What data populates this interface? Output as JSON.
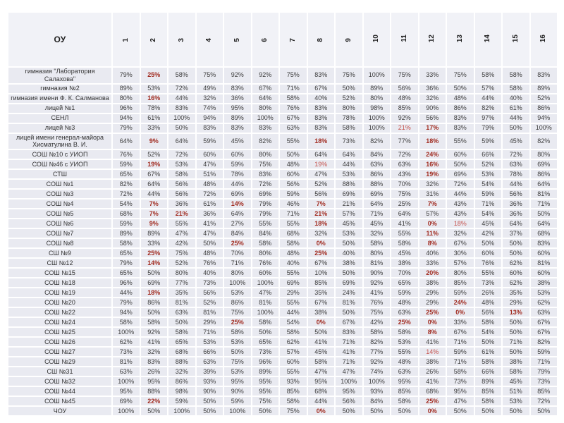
{
  "colors": {
    "row_bg": "#e9eaf1",
    "header_bg": "#f1f2f7",
    "text": "#3d3d3d",
    "name_text": "#333333",
    "header_text": "#1f1f1f",
    "red_bold": "#a12c21",
    "red_light": "#c5534e"
  },
  "chart_data": {
    "type": "table",
    "corner_header": "ОУ",
    "column_headers": [
      "1",
      "2",
      "3",
      "4",
      "5",
      "6",
      "7",
      "8",
      "9",
      "10",
      "11",
      "12",
      "13",
      "14",
      "15",
      "16"
    ],
    "rows": [
      {
        "name": "гимназия \"Лаборатория Салахова\"",
        "values": [
          "79%",
          "25%",
          "58%",
          "75%",
          "92%",
          "92%",
          "75%",
          "83%",
          "75%",
          "100%",
          "75%",
          "33%",
          "75%",
          "58%",
          "58%",
          "83%"
        ],
        "red_bold": [
          1
        ],
        "red_light": []
      },
      {
        "name": "гимназия №2",
        "values": [
          "89%",
          "53%",
          "72%",
          "49%",
          "83%",
          "67%",
          "71%",
          "67%",
          "50%",
          "89%",
          "56%",
          "36%",
          "50%",
          "57%",
          "58%",
          "89%"
        ],
        "red_bold": [],
        "red_light": []
      },
      {
        "name": "гимназия имени Ф. К. Салманова",
        "values": [
          "80%",
          "16%",
          "44%",
          "32%",
          "36%",
          "64%",
          "58%",
          "40%",
          "52%",
          "80%",
          "48%",
          "32%",
          "48%",
          "44%",
          "40%",
          "52%"
        ],
        "red_bold": [
          1
        ],
        "red_light": []
      },
      {
        "name": "лицей №1",
        "values": [
          "96%",
          "78%",
          "83%",
          "74%",
          "95%",
          "80%",
          "76%",
          "83%",
          "80%",
          "98%",
          "85%",
          "90%",
          "86%",
          "82%",
          "61%",
          "86%"
        ],
        "red_bold": [],
        "red_light": []
      },
      {
        "name": "СЕНЛ",
        "values": [
          "94%",
          "61%",
          "100%",
          "94%",
          "89%",
          "100%",
          "67%",
          "83%",
          "78%",
          "100%",
          "92%",
          "56%",
          "83%",
          "97%",
          "44%",
          "94%"
        ],
        "red_bold": [],
        "red_light": []
      },
      {
        "name": "лицей №3",
        "values": [
          "79%",
          "33%",
          "50%",
          "83%",
          "83%",
          "83%",
          "63%",
          "83%",
          "58%",
          "100%",
          "21%",
          "17%",
          "83%",
          "79%",
          "50%",
          "100%"
        ],
        "red_bold": [
          11
        ],
        "red_light": [
          10
        ]
      },
      {
        "name": "лицей имени генерал-майора Хисматулина В. И.",
        "values": [
          "64%",
          "9%",
          "64%",
          "59%",
          "45%",
          "82%",
          "55%",
          "18%",
          "73%",
          "82%",
          "77%",
          "18%",
          "55%",
          "59%",
          "45%",
          "82%"
        ],
        "red_bold": [
          1,
          7,
          11
        ],
        "red_light": []
      },
      {
        "name": "СОШ №10 с УИОП",
        "values": [
          "76%",
          "52%",
          "72%",
          "60%",
          "60%",
          "80%",
          "50%",
          "64%",
          "64%",
          "84%",
          "72%",
          "24%",
          "60%",
          "66%",
          "72%",
          "80%"
        ],
        "red_bold": [
          11
        ],
        "red_light": []
      },
      {
        "name": "СОШ №46 с УИОП",
        "values": [
          "59%",
          "19%",
          "53%",
          "47%",
          "59%",
          "75%",
          "48%",
          "19%",
          "44%",
          "63%",
          "63%",
          "16%",
          "50%",
          "52%",
          "63%",
          "69%"
        ],
        "red_bold": [
          1,
          11
        ],
        "red_light": [
          7
        ]
      },
      {
        "name": "СТШ",
        "values": [
          "65%",
          "67%",
          "58%",
          "51%",
          "78%",
          "83%",
          "60%",
          "47%",
          "53%",
          "86%",
          "43%",
          "19%",
          "69%",
          "53%",
          "78%",
          "86%"
        ],
        "red_bold": [
          11
        ],
        "red_light": []
      },
      {
        "name": "СОШ №1",
        "values": [
          "82%",
          "64%",
          "56%",
          "48%",
          "44%",
          "72%",
          "56%",
          "52%",
          "88%",
          "88%",
          "70%",
          "32%",
          "72%",
          "54%",
          "44%",
          "64%"
        ],
        "red_bold": [],
        "red_light": []
      },
      {
        "name": "СОШ №3",
        "values": [
          "72%",
          "44%",
          "56%",
          "72%",
          "69%",
          "69%",
          "59%",
          "56%",
          "69%",
          "69%",
          "75%",
          "31%",
          "44%",
          "59%",
          "56%",
          "81%"
        ],
        "red_bold": [],
        "red_light": []
      },
      {
        "name": "СОШ №4",
        "values": [
          "54%",
          "7%",
          "36%",
          "61%",
          "14%",
          "79%",
          "46%",
          "7%",
          "21%",
          "64%",
          "25%",
          "7%",
          "43%",
          "71%",
          "36%",
          "71%"
        ],
        "red_bold": [
          1,
          4,
          7,
          11
        ],
        "red_light": []
      },
      {
        "name": "СОШ №5",
        "values": [
          "68%",
          "7%",
          "21%",
          "36%",
          "64%",
          "79%",
          "71%",
          "21%",
          "57%",
          "71%",
          "64%",
          "57%",
          "43%",
          "54%",
          "36%",
          "50%"
        ],
        "red_bold": [
          1,
          2,
          7
        ],
        "red_light": []
      },
      {
        "name": "СОШ №6",
        "values": [
          "59%",
          "9%",
          "55%",
          "41%",
          "27%",
          "55%",
          "55%",
          "18%",
          "45%",
          "45%",
          "41%",
          "0%",
          "18%",
          "45%",
          "64%",
          "64%"
        ],
        "red_bold": [
          1,
          7,
          11
        ],
        "red_light": [
          12
        ]
      },
      {
        "name": "СОШ №7",
        "values": [
          "89%",
          "89%",
          "47%",
          "47%",
          "84%",
          "84%",
          "68%",
          "32%",
          "53%",
          "32%",
          "55%",
          "11%",
          "32%",
          "42%",
          "37%",
          "68%"
        ],
        "red_bold": [
          11
        ],
        "red_light": []
      },
      {
        "name": "СОШ №8",
        "values": [
          "58%",
          "33%",
          "42%",
          "50%",
          "25%",
          "58%",
          "58%",
          "0%",
          "50%",
          "58%",
          "58%",
          "8%",
          "67%",
          "50%",
          "50%",
          "83%"
        ],
        "red_bold": [
          4,
          7,
          11
        ],
        "red_light": []
      },
      {
        "name": "СШ №9",
        "values": [
          "65%",
          "25%",
          "75%",
          "48%",
          "70%",
          "80%",
          "48%",
          "25%",
          "40%",
          "80%",
          "45%",
          "40%",
          "30%",
          "60%",
          "50%",
          "60%"
        ],
        "red_bold": [
          1,
          7
        ],
        "red_light": []
      },
      {
        "name": "СШ №12",
        "values": [
          "79%",
          "14%",
          "52%",
          "76%",
          "71%",
          "76%",
          "40%",
          "67%",
          "38%",
          "81%",
          "38%",
          "33%",
          "57%",
          "76%",
          "62%",
          "81%"
        ],
        "red_bold": [
          1
        ],
        "red_light": []
      },
      {
        "name": "СОШ №15",
        "values": [
          "65%",
          "50%",
          "80%",
          "40%",
          "80%",
          "60%",
          "55%",
          "10%",
          "50%",
          "90%",
          "70%",
          "20%",
          "80%",
          "55%",
          "60%",
          "60%"
        ],
        "red_bold": [
          11
        ],
        "red_light": []
      },
      {
        "name": "СОШ №18",
        "values": [
          "96%",
          "69%",
          "77%",
          "73%",
          "100%",
          "100%",
          "69%",
          "85%",
          "69%",
          "92%",
          "65%",
          "38%",
          "85%",
          "73%",
          "62%",
          "38%"
        ],
        "red_bold": [],
        "red_light": []
      },
      {
        "name": "СОШ №19",
        "values": [
          "44%",
          "18%",
          "35%",
          "56%",
          "53%",
          "47%",
          "29%",
          "35%",
          "24%",
          "41%",
          "59%",
          "29%",
          "59%",
          "26%",
          "35%",
          "53%"
        ],
        "red_bold": [
          1
        ],
        "red_light": []
      },
      {
        "name": "СОШ №20",
        "values": [
          "79%",
          "86%",
          "81%",
          "52%",
          "86%",
          "81%",
          "55%",
          "67%",
          "81%",
          "76%",
          "48%",
          "29%",
          "24%",
          "48%",
          "29%",
          "62%"
        ],
        "red_bold": [
          12
        ],
        "red_light": []
      },
      {
        "name": "СОШ №22",
        "values": [
          "94%",
          "50%",
          "63%",
          "81%",
          "75%",
          "100%",
          "44%",
          "38%",
          "50%",
          "75%",
          "63%",
          "25%",
          "0%",
          "56%",
          "13%",
          "63%"
        ],
        "red_bold": [
          11,
          12,
          14
        ],
        "red_light": []
      },
      {
        "name": "СОШ №24",
        "values": [
          "58%",
          "58%",
          "50%",
          "29%",
          "25%",
          "58%",
          "54%",
          "0%",
          "67%",
          "42%",
          "25%",
          "0%",
          "33%",
          "58%",
          "50%",
          "67%"
        ],
        "red_bold": [
          4,
          7,
          10,
          11
        ],
        "red_light": []
      },
      {
        "name": "СОШ №25",
        "values": [
          "100%",
          "92%",
          "58%",
          "71%",
          "58%",
          "50%",
          "58%",
          "50%",
          "83%",
          "58%",
          "58%",
          "8%",
          "67%",
          "54%",
          "50%",
          "67%"
        ],
        "red_bold": [
          11
        ],
        "red_light": []
      },
      {
        "name": "СОШ №26",
        "values": [
          "62%",
          "41%",
          "65%",
          "53%",
          "53%",
          "65%",
          "62%",
          "41%",
          "71%",
          "82%",
          "53%",
          "41%",
          "71%",
          "50%",
          "71%",
          "82%"
        ],
        "red_bold": [],
        "red_light": []
      },
      {
        "name": "СОШ №27",
        "values": [
          "73%",
          "32%",
          "68%",
          "66%",
          "50%",
          "73%",
          "57%",
          "45%",
          "41%",
          "77%",
          "55%",
          "14%",
          "59%",
          "61%",
          "50%",
          "59%"
        ],
        "red_bold": [],
        "red_light": [
          11
        ]
      },
      {
        "name": "СОШ №29",
        "values": [
          "81%",
          "83%",
          "88%",
          "63%",
          "75%",
          "96%",
          "60%",
          "58%",
          "71%",
          "92%",
          "48%",
          "38%",
          "71%",
          "58%",
          "38%",
          "71%"
        ],
        "red_bold": [],
        "red_light": []
      },
      {
        "name": "СШ №31",
        "values": [
          "63%",
          "26%",
          "32%",
          "39%",
          "53%",
          "89%",
          "55%",
          "47%",
          "47%",
          "74%",
          "63%",
          "26%",
          "58%",
          "66%",
          "58%",
          "79%"
        ],
        "red_bold": [],
        "red_light": []
      },
      {
        "name": "СОШ №32",
        "values": [
          "100%",
          "95%",
          "86%",
          "93%",
          "95%",
          "95%",
          "93%",
          "95%",
          "100%",
          "100%",
          "95%",
          "41%",
          "73%",
          "89%",
          "45%",
          "73%"
        ],
        "red_bold": [],
        "red_light": []
      },
      {
        "name": "СОШ №44",
        "values": [
          "95%",
          "88%",
          "98%",
          "90%",
          "90%",
          "95%",
          "85%",
          "68%",
          "95%",
          "93%",
          "85%",
          "68%",
          "95%",
          "85%",
          "51%",
          "85%"
        ],
        "red_bold": [],
        "red_light": []
      },
      {
        "name": "СОШ №45",
        "values": [
          "69%",
          "22%",
          "59%",
          "50%",
          "59%",
          "75%",
          "58%",
          "44%",
          "56%",
          "84%",
          "58%",
          "25%",
          "47%",
          "58%",
          "53%",
          "72%"
        ],
        "red_bold": [
          1,
          11
        ],
        "red_light": []
      },
      {
        "name": "ЧОУ",
        "values": [
          "100%",
          "50%",
          "100%",
          "50%",
          "100%",
          "50%",
          "75%",
          "0%",
          "50%",
          "50%",
          "50%",
          "0%",
          "50%",
          "50%",
          "50%",
          "50%"
        ],
        "red_bold": [
          7,
          11
        ],
        "red_light": []
      }
    ]
  }
}
